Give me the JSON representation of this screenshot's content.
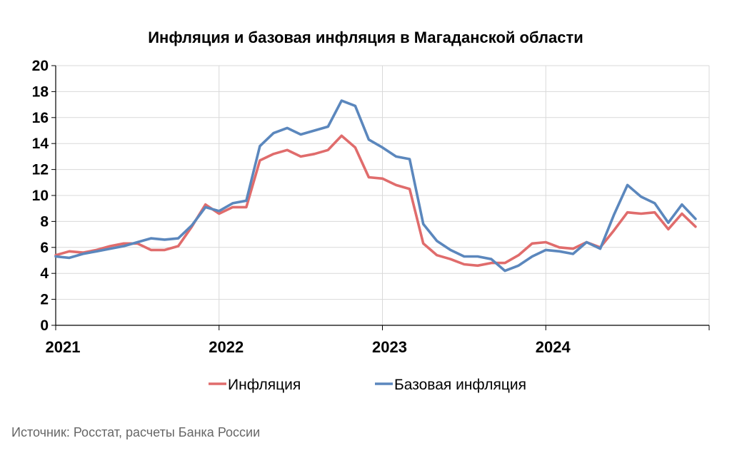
{
  "chart_data": {
    "type": "line",
    "title": "Инфляция и базовая инфляция в Магаданской области",
    "source": "Источник: Росстат, расчеты Банка России",
    "ylim": [
      0,
      20
    ],
    "yticks": [
      "0",
      "2",
      "4",
      "6",
      "8",
      "10",
      "12",
      "14",
      "16",
      "18",
      "20"
    ],
    "xlim": [
      "2021-01",
      "2025-01"
    ],
    "xtick_labels": [
      "2021",
      "2022",
      "2023",
      "2024"
    ],
    "x": [
      "2021-01",
      "2021-02",
      "2021-03",
      "2021-04",
      "2021-05",
      "2021-06",
      "2021-07",
      "2021-08",
      "2021-09",
      "2021-10",
      "2021-11",
      "2021-12",
      "2022-01",
      "2022-02",
      "2022-03",
      "2022-04",
      "2022-05",
      "2022-06",
      "2022-07",
      "2022-08",
      "2022-09",
      "2022-10",
      "2022-11",
      "2022-12",
      "2023-01",
      "2023-02",
      "2023-03",
      "2023-04",
      "2023-05",
      "2023-06",
      "2023-07",
      "2023-08",
      "2023-09",
      "2023-10",
      "2023-11",
      "2023-12",
      "2024-01",
      "2024-02",
      "2024-03",
      "2024-04",
      "2024-05",
      "2024-06",
      "2024-07",
      "2024-08",
      "2024-09",
      "2024-10",
      "2024-11",
      "2024-12"
    ],
    "grid": true,
    "legend_position": "bottom",
    "series": [
      {
        "name": "Инфляция",
        "color": "#e06c6c",
        "values": [
          5.4,
          5.7,
          5.6,
          5.8,
          6.1,
          6.3,
          6.3,
          5.8,
          5.8,
          6.1,
          7.6,
          9.3,
          8.6,
          9.1,
          9.1,
          12.7,
          13.2,
          13.5,
          13.0,
          13.2,
          13.5,
          14.6,
          13.7,
          11.4,
          11.3,
          10.8,
          10.5,
          6.3,
          5.4,
          5.1,
          4.7,
          4.6,
          4.8,
          4.8,
          5.4,
          6.3,
          6.4,
          6.0,
          5.9,
          6.4,
          6.0,
          7.3,
          8.7,
          8.6,
          8.7,
          7.4,
          8.6,
          7.6
        ]
      },
      {
        "name": "Базовая инфляция",
        "color": "#5b87bd",
        "values": [
          5.3,
          5.2,
          5.5,
          5.7,
          5.9,
          6.1,
          6.4,
          6.7,
          6.6,
          6.7,
          7.7,
          9.1,
          8.8,
          9.4,
          9.6,
          13.8,
          14.8,
          15.2,
          14.7,
          15.0,
          15.3,
          17.3,
          16.9,
          14.3,
          13.7,
          13.0,
          12.8,
          7.8,
          6.5,
          5.8,
          5.3,
          5.3,
          5.1,
          4.2,
          4.6,
          5.3,
          5.8,
          5.7,
          5.5,
          6.4,
          5.9,
          8.5,
          10.8,
          9.9,
          9.4,
          7.9,
          9.3,
          8.2
        ]
      }
    ]
  }
}
